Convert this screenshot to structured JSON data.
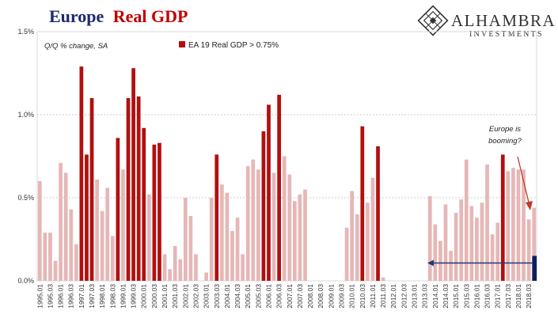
{
  "header": {
    "title_part1": "Europe",
    "title_part2": "Real GDP",
    "title_color1": "#1c2a6e",
    "title_color2": "#c00000"
  },
  "logo": {
    "name": "ALHAMBRA",
    "sub": "INVESTMENTS",
    "icon": "alhambra-lattice-logo"
  },
  "colors": {
    "highlight": "#b30f0f",
    "normal": "#e6b7b7",
    "arrow_blue": "#1f3a75",
    "bar_navy": "#0d1f5c",
    "annotation_red": "#c0392b"
  },
  "annotation": {
    "line1": "Europe is",
    "line2": "booming?"
  },
  "chart_data": {
    "type": "bar",
    "title": "Europe Real GDP",
    "subtitle": "Q/Q % change, SA",
    "legend": [
      {
        "name": "EA 19 Real GDP > 0.75%",
        "color": "#b30f0f"
      }
    ],
    "legend_placement": "top-center",
    "ylim": [
      0,
      1.5
    ],
    "y_ticks": [
      "0.0%",
      "0.5%",
      "1.0%",
      "1.5%"
    ],
    "y_tick_values": [
      0,
      0.5,
      1.0,
      1.5
    ],
    "threshold": 0.75,
    "grid": true,
    "x_labels": [
      "1995.01",
      "1995.03",
      "1996.01",
      "1996.03",
      "1997.01",
      "1997.03",
      "1998.01",
      "1998.03",
      "1999.01",
      "1999.03",
      "2000.01",
      "2000.03",
      "2001.01",
      "2001.03",
      "2002.01",
      "2002.03",
      "2003.01",
      "2003.03",
      "2004.01",
      "2004.03",
      "2005.01",
      "2005.03",
      "2006.01",
      "2006.03",
      "2007.01",
      "2007.03",
      "2008.01",
      "2008.03",
      "2009.01",
      "2009.03",
      "2010.01",
      "2010.03",
      "2011.01",
      "2011.03",
      "2012.01",
      "2012.03",
      "2013.01",
      "2013.03",
      "2014.01",
      "2014.03",
      "2015.01",
      "2015.03",
      "2016.01",
      "2016.03",
      "2017.01",
      "2017.03",
      "2018.01",
      "2018.03"
    ],
    "values": [
      0.6,
      0.29,
      0.29,
      0.12,
      0.71,
      0.65,
      0.43,
      0.22,
      1.29,
      0.76,
      1.1,
      0.61,
      0.42,
      0.56,
      0.27,
      0.86,
      0.67,
      1.1,
      1.28,
      1.11,
      0.92,
      0.52,
      0.82,
      0.83,
      0.16,
      0.07,
      0.21,
      0.13,
      0.5,
      0.39,
      0.16,
      0.0,
      0.05,
      0.5,
      0.76,
      0.58,
      0.53,
      0.3,
      0.38,
      0.16,
      0.69,
      0.73,
      0.67,
      0.9,
      1.06,
      0.65,
      1.12,
      0.75,
      0.64,
      0.48,
      0.52,
      0.55,
      0.0,
      0.0,
      0.0,
      0.0,
      0.0,
      0.0,
      0.0,
      0.32,
      0.54,
      0.4,
      0.93,
      0.47,
      0.62,
      0.81,
      0.02,
      0.0,
      0.0,
      0.0,
      0.0,
      0.0,
      0.0,
      0.0,
      0.0,
      0.51,
      0.34,
      0.24,
      0.46,
      0.18,
      0.41,
      0.49,
      0.73,
      0.45,
      0.38,
      0.47,
      0.7,
      0.28,
      0.35,
      0.76,
      0.66,
      0.68,
      0.67,
      0.67,
      0.37,
      0.44
    ],
    "current_value": 0.15
  }
}
